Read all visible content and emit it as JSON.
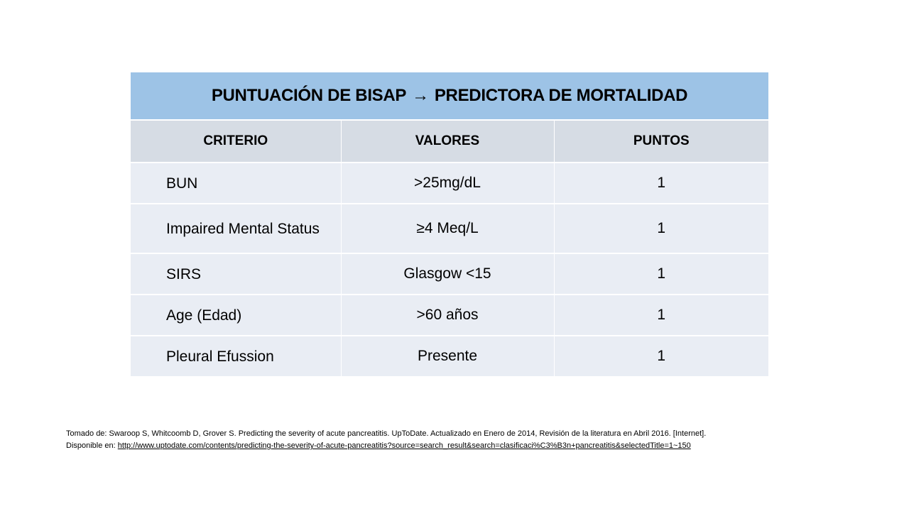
{
  "table": {
    "title_left": "PUNTUACIÓN DE BISAP",
    "title_arrow": "→",
    "title_right": "PREDICTORA DE MORTALIDAD",
    "headers": [
      "CRITERIO",
      "VALORES",
      "PUNTOS"
    ],
    "rows": [
      {
        "criterio": "BUN",
        "valor": ">25mg/dL",
        "puntos": "1"
      },
      {
        "criterio": "Impaired Mental Status",
        "valor": "≥4 Meq/L",
        "puntos": "1"
      },
      {
        "criterio": "SIRS",
        "valor": "Glasgow <15",
        "puntos": "1"
      },
      {
        "criterio": "Age (Edad)",
        "valor": ">60 años",
        "puntos": "1"
      },
      {
        "criterio": "Pleural Efussion",
        "valor": "Presente",
        "puntos": "1"
      }
    ]
  },
  "citation": {
    "line1": "Tomado de: Swaroop S, Whitcoomb D, Grover S. Predicting the severity of acute pancreatitis. UpToDate. Actualizado en Enero de 2014,  Revisión de la literatura en Abril 2016.  [Internet].",
    "line2_prefix": "Disponible en: ",
    "url": "http://www.uptodate.com/contents/predicting-the-severity-of-acute-pancreatitis?source=search_result&search=clasificaci%C3%B3n+pancreatitis&selectedTitle=1~150"
  },
  "colors": {
    "title_bg": "#9dc3e6",
    "header_bg": "#d6dce4",
    "row_bg": "#e9edf4"
  }
}
